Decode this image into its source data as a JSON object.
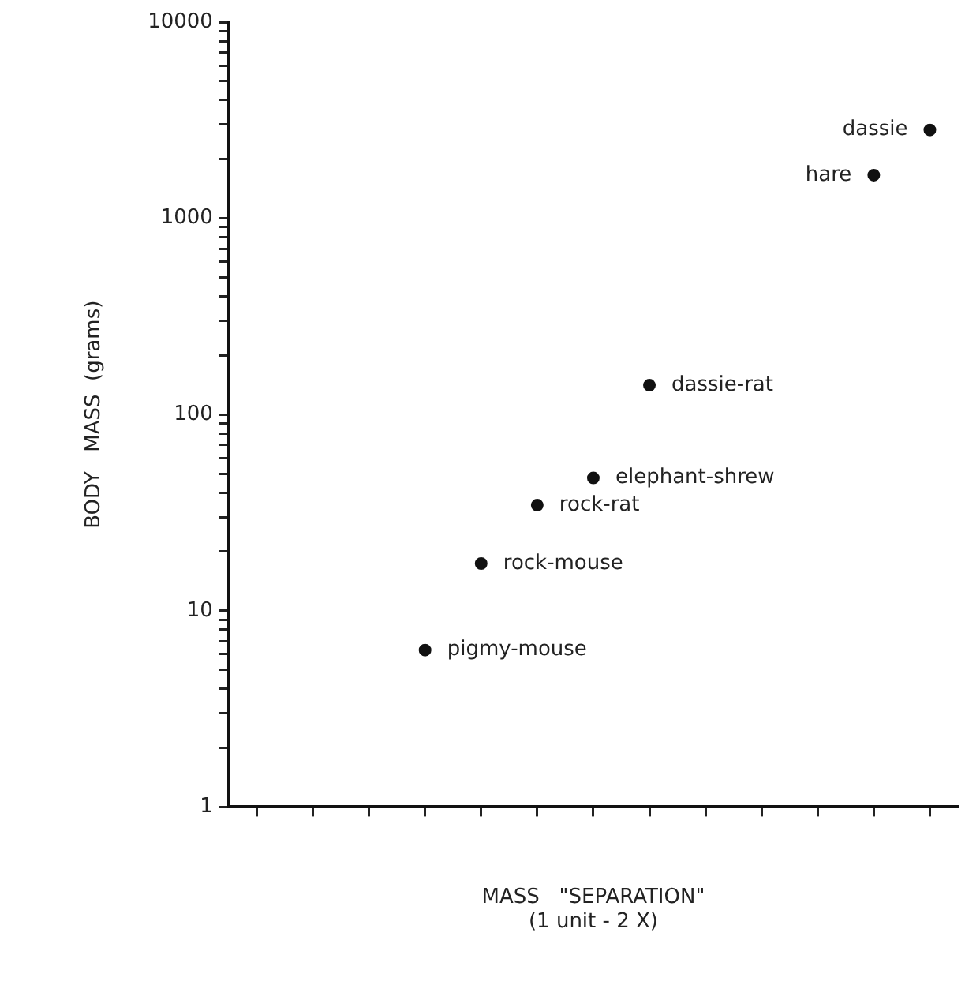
{
  "chart_data": {
    "type": "scatter",
    "xlabel": "MASS   \"SEPARATION\"\n(1 unit - 2 X)",
    "ylabel": "BODY   MASS  (grams)",
    "categories": [
      null,
      null,
      null,
      null,
      null,
      null,
      null,
      null,
      null,
      null,
      null,
      null,
      null
    ],
    "series": [
      {
        "name": "pigmy-mouse",
        "color": "#111111",
        "values": [
          null,
          null,
          null,
          6.3,
          null,
          null,
          null,
          null,
          null,
          null,
          null,
          null,
          null
        ]
      },
      {
        "name": "rock-mouse",
        "color": "#111111",
        "values": [
          null,
          null,
          null,
          null,
          17.4,
          null,
          null,
          null,
          null,
          null,
          null,
          null,
          null
        ]
      },
      {
        "name": "rock-rat",
        "color": "#111111",
        "values": [
          null,
          null,
          null,
          null,
          null,
          34.5,
          null,
          null,
          null,
          null,
          null,
          null,
          null
        ]
      },
      {
        "name": "elephant-shrew",
        "color": "#111111",
        "values": [
          null,
          null,
          null,
          null,
          null,
          null,
          47.5,
          null,
          null,
          null,
          null,
          null,
          null
        ]
      },
      {
        "name": "dassie-rat",
        "color": "#111111",
        "values": [
          null,
          null,
          null,
          null,
          null,
          null,
          null,
          141,
          null,
          null,
          null,
          null,
          null
        ]
      },
      {
        "name": "hare",
        "color": "#111111",
        "values": [
          null,
          null,
          null,
          null,
          null,
          null,
          null,
          null,
          null,
          null,
          null,
          1660,
          null
        ]
      },
      {
        "name": "dassie",
        "color": "#111111",
        "values": [
          null,
          null,
          null,
          null,
          null,
          null,
          null,
          null,
          null,
          null,
          null,
          null,
          2820
        ]
      }
    ],
    "log": "y",
    "grid": false,
    "marker": "circle",
    "tick_labels": "y",
    "ylim": [
      1,
      10000
    ],
    "yticks": [
      1,
      {
        "value": 2,
        "label": null
      },
      {
        "value": 3,
        "label": null
      },
      {
        "value": 4,
        "label": null
      },
      {
        "value": 5,
        "label": null
      },
      {
        "value": 6,
        "label": null
      },
      {
        "value": 7,
        "label": null
      },
      {
        "value": 8,
        "label": null
      },
      {
        "value": 9,
        "label": null
      },
      10,
      {
        "value": 20,
        "label": null
      },
      {
        "value": 30,
        "label": null
      },
      {
        "value": 40,
        "label": null
      },
      {
        "value": 50,
        "label": null
      },
      {
        "value": 60,
        "label": null
      },
      {
        "value": 70,
        "label": null
      },
      {
        "value": 80,
        "label": null
      },
      {
        "value": 90,
        "label": null
      },
      100,
      {
        "value": 200,
        "label": null
      },
      {
        "value": 300,
        "label": null
      },
      {
        "value": 400,
        "label": null
      },
      {
        "value": 500,
        "label": null
      },
      {
        "value": 600,
        "label": null
      },
      {
        "value": 700,
        "label": null
      },
      {
        "value": 800,
        "label": null
      },
      {
        "value": 900,
        "label": null
      },
      1000,
      {
        "value": 2000,
        "label": null
      },
      {
        "value": 3000,
        "label": null
      },
      {
        "value": 4000,
        "label": null
      },
      {
        "value": 5000,
        "label": null
      },
      {
        "value": 6000,
        "label": null
      },
      {
        "value": 7000,
        "label": null
      },
      {
        "value": 8000,
        "label": null
      },
      {
        "value": 9000,
        "label": null
      },
      10000
    ]
  }
}
